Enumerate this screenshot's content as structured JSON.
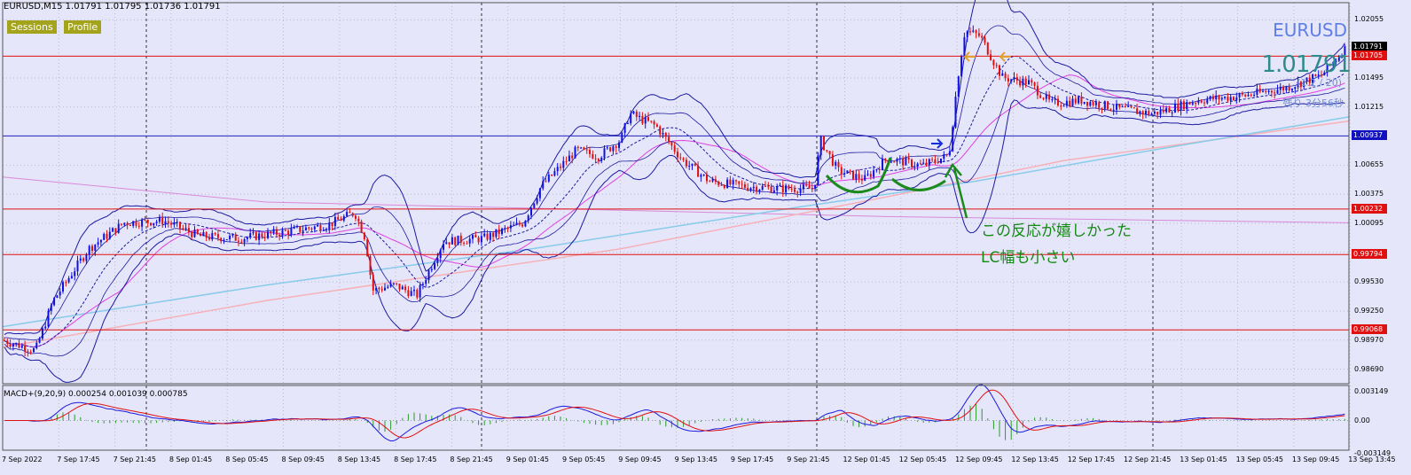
{
  "window": {
    "title": "EURUSD,M15  1.01791 1.01795 1.01736 1.01791",
    "buttons": [
      "Sessions",
      "Profile"
    ]
  },
  "overlay": {
    "symbol": "EURUSD",
    "price_display": "1.01791",
    "spread_text": "(1.2 / 20)",
    "timer_text": "残り 3分56秒"
  },
  "annotation": {
    "line1": "この反応が嬉しかった",
    "line2": "LC幅も小さい"
  },
  "price_axis": {
    "labels": [
      "1.02055",
      "1.01495",
      "1.01215",
      "1.00655",
      "1.00375",
      "1.00095",
      "0.99815",
      "0.99530",
      "0.99250",
      "0.98970",
      "0.98690"
    ],
    "tags": [
      {
        "text": "1.01791",
        "color": "#000000",
        "price": 1.01791
      },
      {
        "text": "1.01705",
        "color": "#e01010",
        "price": 1.01705
      },
      {
        "text": "1.00937",
        "color": "#1010c0",
        "price": 1.00937
      },
      {
        "text": "1.00232",
        "color": "#e01010",
        "price": 1.00232
      },
      {
        "text": "0.99794",
        "color": "#e01010",
        "price": 0.99794
      },
      {
        "text": "0.99068",
        "color": "#e01010",
        "price": 0.99068
      }
    ]
  },
  "horizontal_lines": [
    {
      "price": 1.01705,
      "color": "#e01010"
    },
    {
      "price": 1.00937,
      "color": "#2020c0"
    },
    {
      "price": 1.00232,
      "color": "#e01010"
    },
    {
      "price": 0.99794,
      "color": "#e01010"
    },
    {
      "price": 0.99068,
      "color": "#e01010"
    }
  ],
  "macd": {
    "title": "MACD+(9,20,9) 0.000254 0.001039 0.000785",
    "axis_labels": [
      "0.003149",
      "0.00",
      "-0.003149"
    ]
  },
  "time_axis": [
    "7 Sep 2022",
    "7 Sep 17:45",
    "7 Sep 21:45",
    "8 Sep 01:45",
    "8 Sep 05:45",
    "8 Sep 09:45",
    "8 Sep 13:45",
    "8 Sep 17:45",
    "8 Sep 21:45",
    "9 Sep 01:45",
    "9 Sep 05:45",
    "9 Sep 09:45",
    "9 Sep 13:45",
    "9 Sep 17:45",
    "9 Sep 21:45",
    "12 Sep 01:45",
    "12 Sep 05:45",
    "12 Sep 09:45",
    "12 Sep 13:45",
    "12 Sep 17:45",
    "12 Sep 21:45",
    "13 Sep 01:45",
    "13 Sep 05:45",
    "13 Sep 09:45",
    "13 Sep 13:45"
  ],
  "colors": {
    "background": "#e6e6fa",
    "bull": "#1010e0",
    "bear": "#e01010",
    "bollinger": "#1a1aa0",
    "ma_magenta": "#e040e0",
    "ma_skyblue": "#87cbea",
    "ma_pink": "#f6b1b8",
    "ma_violet": "#d88ad8",
    "annotation": "#138a13"
  }
}
